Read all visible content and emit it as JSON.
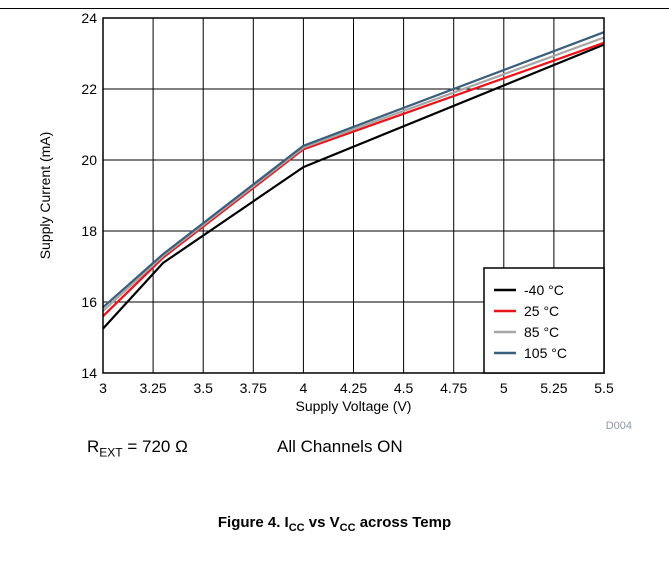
{
  "chart_data": {
    "type": "line",
    "xlabel": "Supply Voltage (V)",
    "ylabel": "Supply Current (mA)",
    "xlim": [
      3,
      5.5
    ],
    "ylim": [
      14,
      24
    ],
    "x_ticks": [
      "3",
      "3.25",
      "3.5",
      "3.75",
      "4",
      "4.25",
      "4.5",
      "4.75",
      "5",
      "5.25",
      "5.5"
    ],
    "y_ticks": [
      "14",
      "16",
      "18",
      "20",
      "22",
      "24"
    ],
    "grid": true,
    "legend_position": "bottom-right",
    "series": [
      {
        "name": "-40 °C",
        "color": "#000000",
        "x": [
          3,
          3.3,
          4,
          5.5
        ],
        "y": [
          15.25,
          17.1,
          19.8,
          23.25
        ]
      },
      {
        "name": "25 °C",
        "color": "#e8141c",
        "x": [
          3,
          3.3,
          4,
          5.5
        ],
        "y": [
          15.6,
          17.25,
          20.3,
          23.3
        ]
      },
      {
        "name": "85 °C",
        "color": "#a6a6a6",
        "x": [
          3,
          3.3,
          4,
          5.5
        ],
        "y": [
          15.75,
          17.3,
          20.35,
          23.45
        ]
      },
      {
        "name": "105 °C",
        "color": "#3b5f7a",
        "x": [
          3,
          3.3,
          4,
          5.5
        ],
        "y": [
          15.85,
          17.35,
          20.4,
          23.6
        ]
      }
    ],
    "watermark": "D004"
  },
  "notes": {
    "rext_main": "R",
    "rext_sub": "EXT",
    "rext_value": " = 720 Ω",
    "channels": "All Channels ON"
  },
  "caption": {
    "prefix": "Figure 4. I",
    "sub1": "CC",
    "middle": " vs V",
    "sub2": "CC",
    "suffix": " across Temp"
  }
}
